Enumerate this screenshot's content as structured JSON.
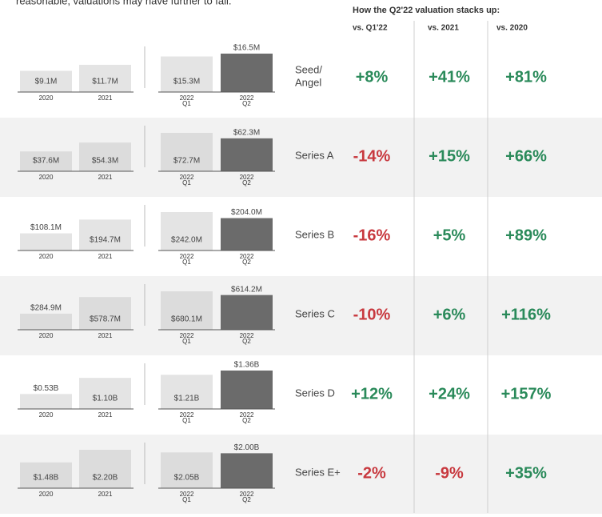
{
  "header": {
    "intro": "reasonable, valuations may have further to fall.",
    "table_title": "How the Q2'22 valuation stacks up:",
    "columns": [
      "vs. Q1'22",
      "vs. 2021",
      "vs. 2020"
    ]
  },
  "categories": [
    [
      "2020"
    ],
    [
      "2021"
    ],
    [
      "2022",
      "Q1"
    ],
    [
      "2022",
      "Q2"
    ]
  ],
  "rows": [
    {
      "stage": [
        "Seed/",
        "Angel"
      ],
      "values": [
        9.1,
        11.7,
        15.3,
        16.5
      ],
      "value_labels": [
        "$9.1M",
        "$11.7M",
        "$15.3M",
        "$16.5M"
      ],
      "changes": [
        "+8%",
        "+41%",
        "+81%"
      ]
    },
    {
      "stage": [
        "Series A"
      ],
      "values": [
        37.6,
        54.3,
        72.7,
        62.3
      ],
      "value_labels": [
        "$37.6M",
        "$54.3M",
        "$72.7M",
        "$62.3M"
      ],
      "changes": [
        "-14%",
        "+15%",
        "+66%"
      ]
    },
    {
      "stage": [
        "Series B"
      ],
      "values": [
        108.1,
        194.7,
        242.0,
        204.0
      ],
      "value_labels": [
        "$108.1M",
        "$194.7M",
        "$242.0M",
        "$204.0M"
      ],
      "changes": [
        "-16%",
        "+5%",
        "+89%"
      ]
    },
    {
      "stage": [
        "Series C"
      ],
      "values": [
        284.9,
        578.7,
        680.1,
        614.2
      ],
      "value_labels": [
        "$284.9M",
        "$578.7M",
        "$680.1M",
        "$614.2M"
      ],
      "changes": [
        "-10%",
        "+6%",
        "+116%"
      ]
    },
    {
      "stage": [
        "Series D"
      ],
      "values": [
        0.53,
        1.1,
        1.21,
        1.36
      ],
      "value_labels": [
        "$0.53B",
        "$1.10B",
        "$1.21B",
        "$1.36B"
      ],
      "changes": [
        "+12%",
        "+24%",
        "+157%"
      ]
    },
    {
      "stage": [
        "Series E+"
      ],
      "values": [
        1.48,
        2.2,
        2.05,
        2.0
      ],
      "value_labels": [
        "$1.48B",
        "$2.20B",
        "$2.05B",
        "$2.00B"
      ],
      "changes": [
        "-2%",
        "-9%",
        "+35%"
      ]
    }
  ]
}
